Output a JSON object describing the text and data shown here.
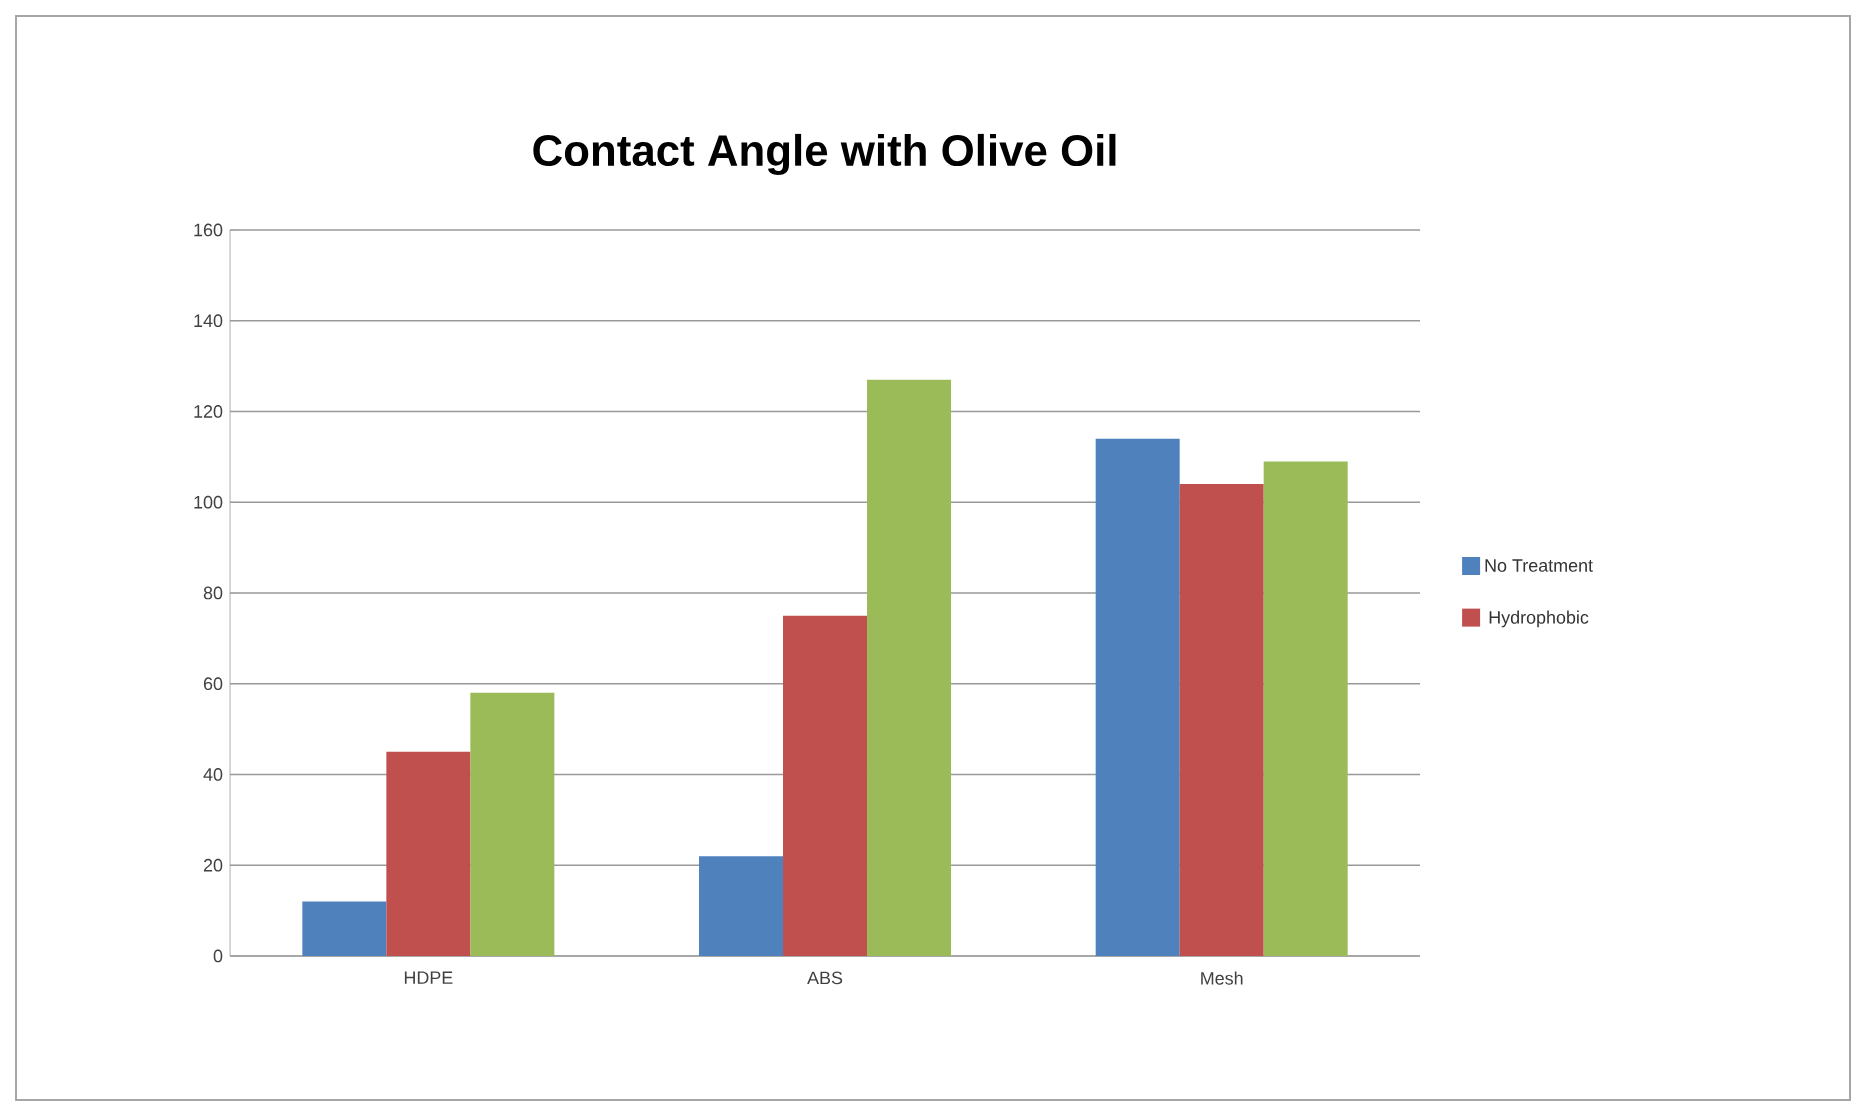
{
  "chart_data": {
    "type": "bar",
    "title": "Contact Angle with Olive Oil",
    "categories": [
      "HDPE",
      "ABS",
      "Mesh"
    ],
    "series": [
      {
        "name": "No Treatment",
        "color": "#4f81bd",
        "values": [
          12,
          22,
          114
        ]
      },
      {
        "name": "Hydrophobic",
        "color": "#c0504d",
        "values": [
          45,
          75,
          104
        ]
      },
      {
        "color": "#9bbb59",
        "values": [
          58,
          127,
          109
        ]
      }
    ],
    "ylim": [
      0,
      160
    ],
    "yticks": [
      0,
      20,
      40,
      60,
      80,
      100,
      120,
      140,
      160
    ],
    "grid": "y",
    "legend": "right"
  }
}
